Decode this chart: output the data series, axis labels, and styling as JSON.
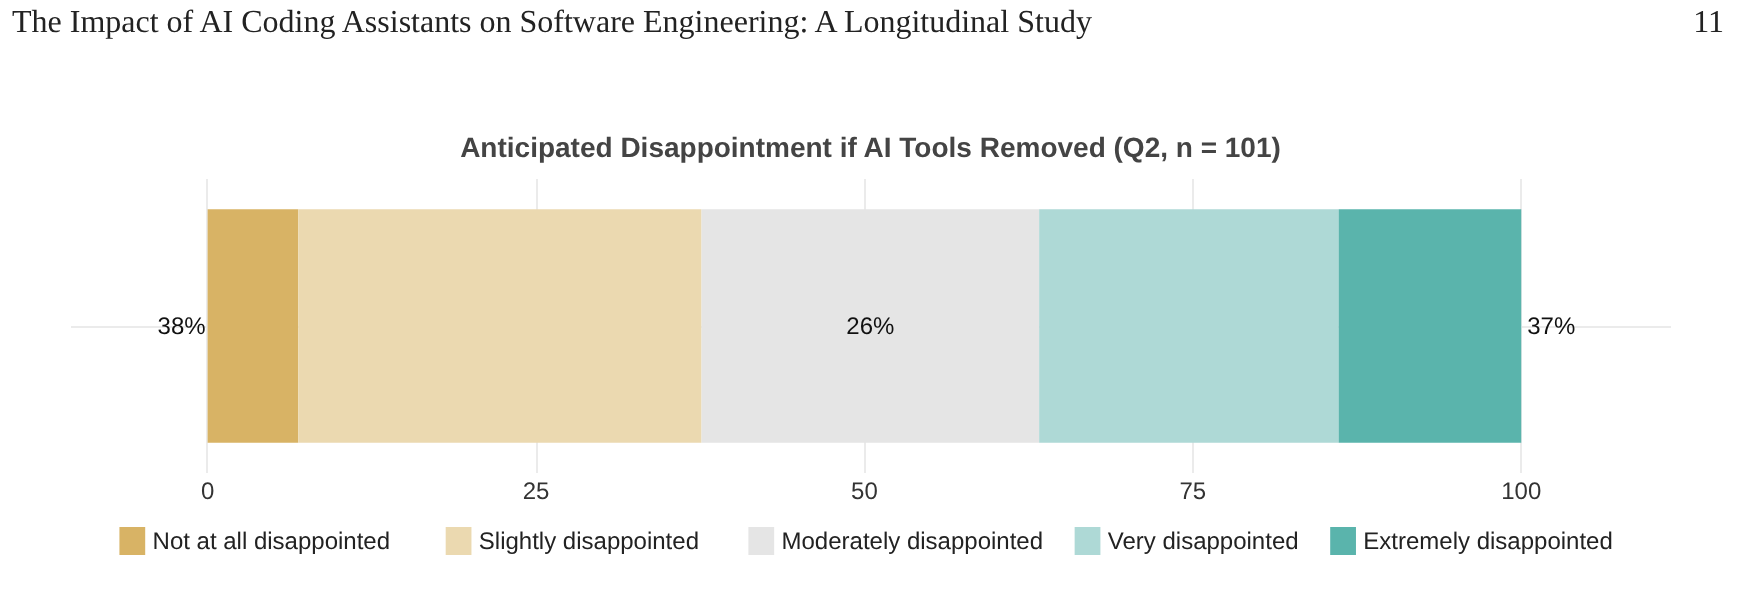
{
  "chart_data": {
    "type": "bar",
    "orientation": "horizontal",
    "stacked": true,
    "title": "Anticipated Disappointment if AI Tools Removed (Q2, n = 101)",
    "categories": [
      null
    ],
    "series": [
      {
        "name": "Not at all disappointed",
        "color": "#d8b365",
        "values": [
          6.9
        ]
      },
      {
        "name": "Slightly disappointed",
        "color": "#ebd9b0",
        "values": [
          30.7
        ]
      },
      {
        "name": "Moderately disappointed",
        "color": "#e5e5e5",
        "values": [
          25.7
        ],
        "value_labels": [
          "26%"
        ]
      },
      {
        "name": "Very disappointed",
        "color": "#aed9d6",
        "values": [
          22.8
        ]
      },
      {
        "name": "Extremely disappointed",
        "color": "#5ab4ac",
        "values": [
          13.9
        ]
      }
    ],
    "xlim": [
      -10.4,
      111.4
    ],
    "xticks": [
      0,
      25,
      50,
      75,
      100
    ],
    "grid": true,
    "legend": "bottom",
    "annotations": [
      "The Impact of AI Coding Assistants on Software Engineering: A Longitudinal Study",
      "11",
      {
        "text": "38%",
        "x": 0
      },
      {
        "text": "37%",
        "x": 100
      }
    ]
  }
}
